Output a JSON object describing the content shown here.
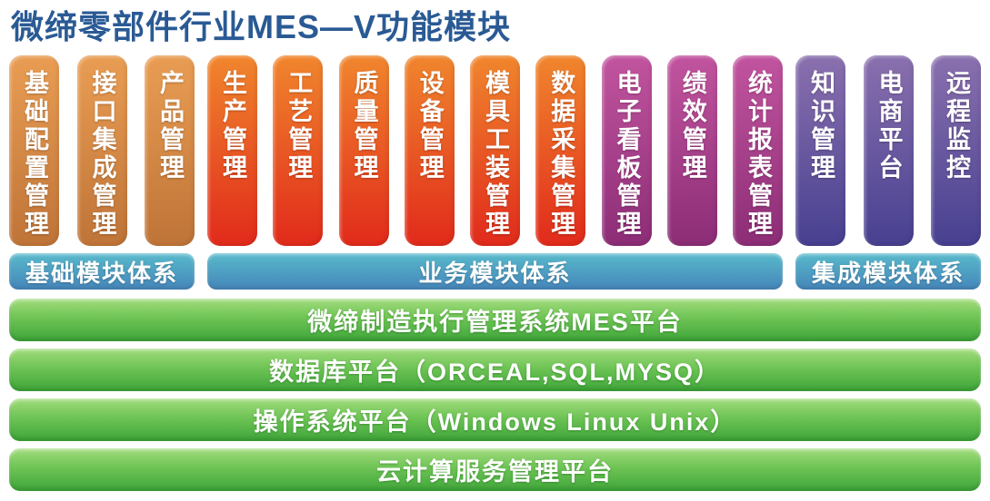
{
  "title": "微缔零部件行业MES—V功能模块",
  "palette": {
    "title_color": "#2a5a94",
    "module_orange_top": "#e99d53",
    "module_orange_bottom": "#bf7438",
    "module_red_top": "#f0862d",
    "module_red_bottom": "#e12a1b",
    "module_magenta_top": "#c2549f",
    "module_magenta_bottom": "#8c2d76",
    "module_purple_top": "#8a70ae",
    "module_purple_bottom": "#474090",
    "tier_cyan_top": "#58bacb",
    "tier_cyan_bottom": "#4585ba",
    "layer_green_top": "#a2dc7d",
    "layer_green_bottom": "#3fa53a",
    "text_white": "#ffffff"
  },
  "sections": [
    {
      "tier_label": "基础模块体系",
      "modules": [
        {
          "label": "基础配置管理"
        },
        {
          "label": "接口集成管理"
        },
        {
          "label": "产品管理"
        }
      ]
    },
    {
      "tier_label": "业务模块体系",
      "modules": [
        {
          "label": "生产管理"
        },
        {
          "label": "工艺管理"
        },
        {
          "label": "质量管理"
        },
        {
          "label": "设备管理"
        },
        {
          "label": "模具工装管理"
        },
        {
          "label": "数据采集管理"
        },
        {
          "label": "电子看板管理"
        },
        {
          "label": "绩效管理"
        },
        {
          "label": "统计报表管理"
        }
      ]
    },
    {
      "tier_label": "集成模块体系",
      "modules": [
        {
          "label": "知识管理"
        },
        {
          "label": "电商平台"
        },
        {
          "label": "远程监控"
        }
      ]
    }
  ],
  "platform_layers": [
    {
      "label": "微缔制造执行管理系统MES平台"
    },
    {
      "label": "数据库平台（ORCEAL,SQL,MYSQ）"
    },
    {
      "label": "操作系统平台（Windows Linux Unix）"
    },
    {
      "label": "云计算服务管理平台"
    }
  ]
}
